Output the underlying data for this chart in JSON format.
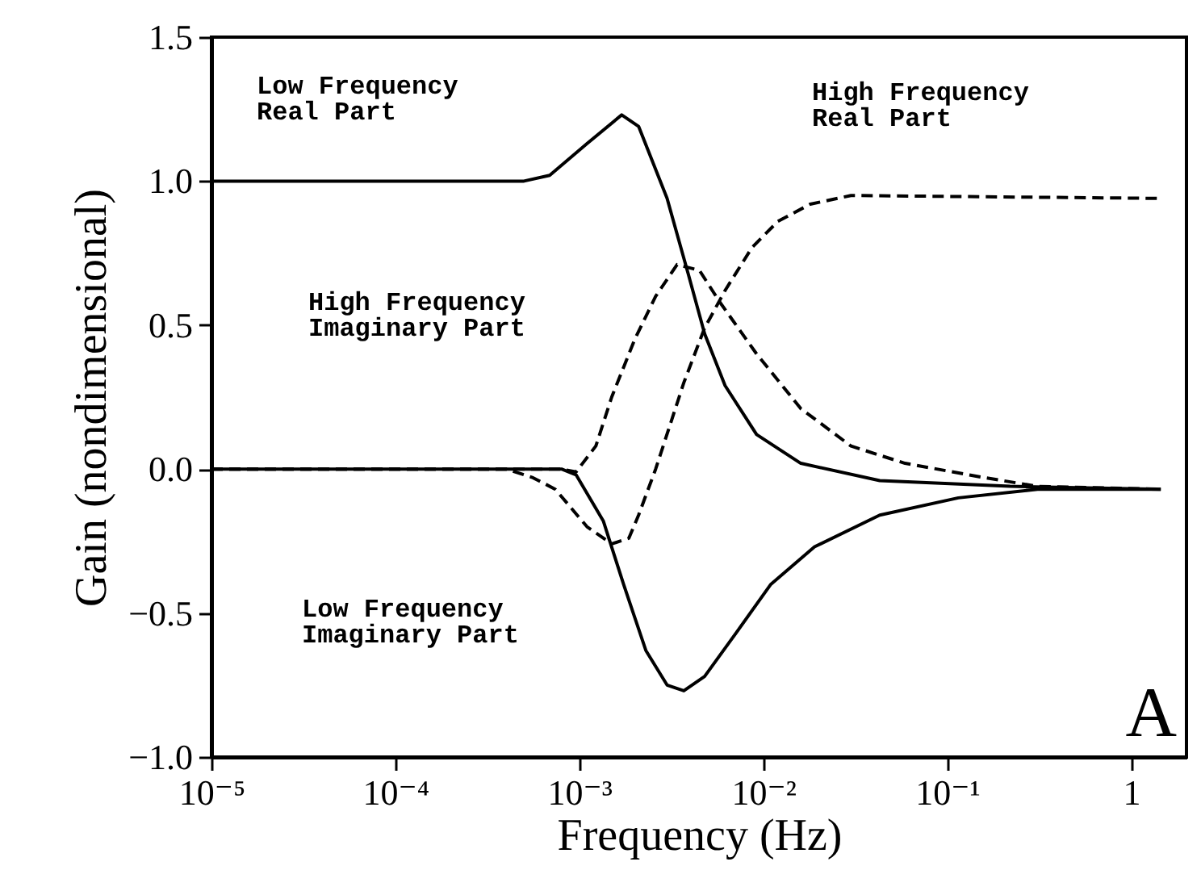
{
  "chart_data": {
    "type": "line",
    "xlabel": "Frequency (Hz)",
    "ylabel": "Gain (nondimensional)",
    "log": "x",
    "xlim": [
      1e-05,
      2
    ],
    "ylim": [
      -1.0,
      1.5
    ],
    "xticks": [
      {
        "value": 1e-05,
        "label": "10⁻⁵"
      },
      {
        "value": 0.0001,
        "label": "10⁻⁴"
      },
      {
        "value": 0.001,
        "label": "10⁻³"
      },
      {
        "value": 0.01,
        "label": "10⁻²"
      },
      {
        "value": 0.1,
        "label": "10⁻¹"
      },
      1
    ],
    "yticks": [
      {
        "value": -1.0,
        "label": "−1.0"
      },
      {
        "value": -0.5,
        "label": "−0.5"
      },
      {
        "value": 0,
        "label": "0.0"
      },
      {
        "value": 0.5,
        "label": "0.5"
      },
      {
        "value": 1.0,
        "label": "1.0"
      },
      {
        "value": 1.5,
        "label": "1.5"
      }
    ],
    "grid": false,
    "series": [
      {
        "color": "#000000",
        "line_style": "solid",
        "x": [
          1e-05,
          0.0005,
          0.00069,
          0.0011,
          0.0017,
          0.0021,
          0.003,
          0.0039,
          0.0048,
          0.0062,
          0.0092,
          0.016,
          0.043,
          0.22,
          1.45
        ],
        "values": [
          1.0,
          1.0,
          1.02,
          1.13,
          1.23,
          1.19,
          0.94,
          0.68,
          0.47,
          0.29,
          0.12,
          0.02,
          -0.04,
          -0.06,
          -0.07
        ]
      },
      {
        "color": "#000000",
        "line_style": "solid",
        "x": [
          1e-05,
          0.0008,
          0.00096,
          0.00135,
          0.00174,
          0.0023,
          0.003,
          0.0037,
          0.0048,
          0.0071,
          0.011,
          0.019,
          0.043,
          0.115,
          0.31,
          1.45
        ],
        "values": [
          0.0,
          0.0,
          -0.02,
          -0.18,
          -0.4,
          -0.63,
          -0.75,
          -0.77,
          -0.72,
          -0.57,
          -0.4,
          -0.27,
          -0.16,
          -0.1,
          -0.07,
          -0.07
        ]
      },
      {
        "color": "#000000",
        "line_style": "dashed",
        "x": [
          1e-05,
          0.0004,
          0.00056,
          0.00074,
          0.0011,
          0.0015,
          0.00186,
          0.0021,
          0.0026,
          0.0037,
          0.0048,
          0.0062,
          0.0087,
          0.012,
          0.018,
          0.03,
          1.45
        ],
        "values": [
          0.0,
          0.0,
          -0.03,
          -0.07,
          -0.2,
          -0.26,
          -0.24,
          -0.16,
          0.0,
          0.3,
          0.49,
          0.62,
          0.77,
          0.86,
          0.92,
          0.95,
          0.94
        ]
      },
      {
        "color": "#000000",
        "line_style": "dashed",
        "x": [
          1e-05,
          0.0008,
          0.00096,
          0.00123,
          0.0015,
          0.002,
          0.0026,
          0.0034,
          0.0045,
          0.0058,
          0.0092,
          0.016,
          0.03,
          0.059,
          0.16,
          0.31,
          1.45
        ],
        "values": [
          0.0,
          0.0,
          -0.01,
          0.08,
          0.25,
          0.45,
          0.6,
          0.71,
          0.69,
          0.58,
          0.4,
          0.21,
          0.08,
          0.02,
          -0.03,
          -0.06,
          -0.07
        ]
      }
    ],
    "annotations": [
      "Low Frequency\nReal Part",
      "High Frequency\nReal Part",
      "High Frequency\nImaginary Part",
      "Low Frequency\nImaginary Part",
      "A"
    ]
  }
}
